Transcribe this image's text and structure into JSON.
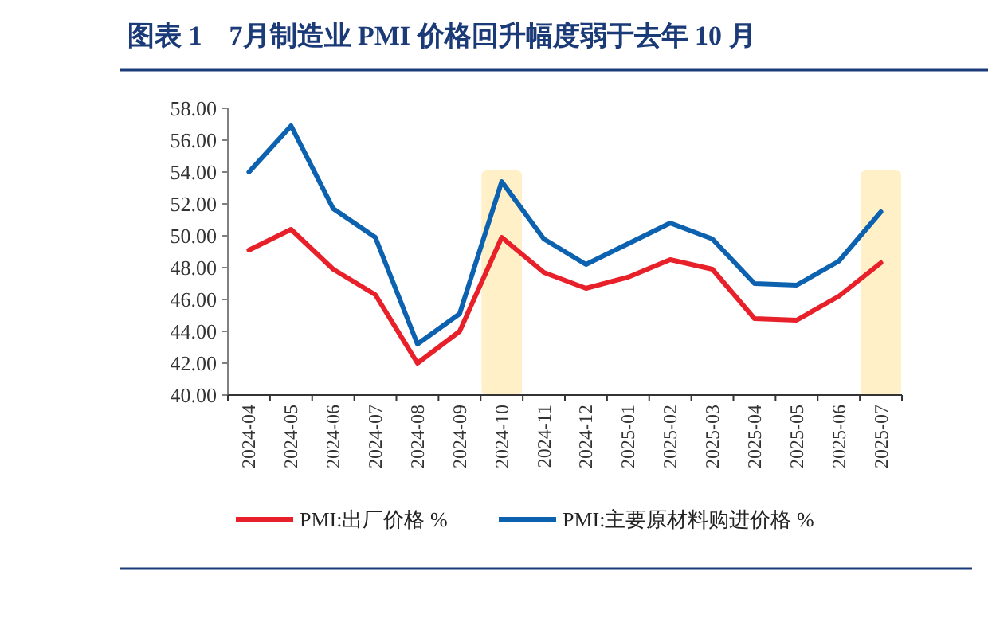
{
  "chart_data": {
    "type": "line",
    "title": "图表 1　7月制造业 PMI 价格回升幅度弱于去年 10 月",
    "categories": [
      "2024-04",
      "2024-05",
      "2024-06",
      "2024-07",
      "2024-08",
      "2024-09",
      "2024-10",
      "2024-11",
      "2024-12",
      "2025-01",
      "2025-02",
      "2025-03",
      "2025-04",
      "2025-05",
      "2025-06",
      "2025-07"
    ],
    "series": [
      {
        "name": "PMI:出厂价格 %",
        "color": "#e8202a",
        "values": [
          49.1,
          50.4,
          47.9,
          46.3,
          42.0,
          44.0,
          49.9,
          47.7,
          46.7,
          47.4,
          48.5,
          47.9,
          44.8,
          44.7,
          46.2,
          48.3
        ]
      },
      {
        "name": "PMI:主要原材料购进价格 %",
        "color": "#0d62b0",
        "values": [
          54.0,
          56.9,
          51.7,
          49.9,
          43.2,
          45.1,
          53.4,
          49.8,
          48.2,
          49.5,
          50.8,
          49.8,
          47.0,
          46.9,
          48.4,
          51.5
        ]
      }
    ],
    "ylim": [
      40,
      58
    ],
    "yticks": [
      {
        "value": 40,
        "label": "40.00"
      },
      {
        "value": 42,
        "label": "42.00"
      },
      {
        "value": 44,
        "label": "44.00"
      },
      {
        "value": 46,
        "label": "46.00"
      },
      {
        "value": 48,
        "label": "48.00"
      },
      {
        "value": 50,
        "label": "50.00"
      },
      {
        "value": 52,
        "label": "52.00"
      },
      {
        "value": 54,
        "label": "54.00"
      },
      {
        "value": 56,
        "label": "56.00"
      },
      {
        "value": 58,
        "label": "58.00"
      }
    ],
    "bands": [
      {
        "axis": "x",
        "from": "2024-10",
        "to": "2024-10",
        "color": "#fff0c8"
      },
      {
        "axis": "x",
        "from": "2025-07",
        "to": "2025-07",
        "color": "#fff0c8"
      }
    ],
    "grid": false,
    "legend": "bottom",
    "marker": "none",
    "line_style": "solid"
  }
}
